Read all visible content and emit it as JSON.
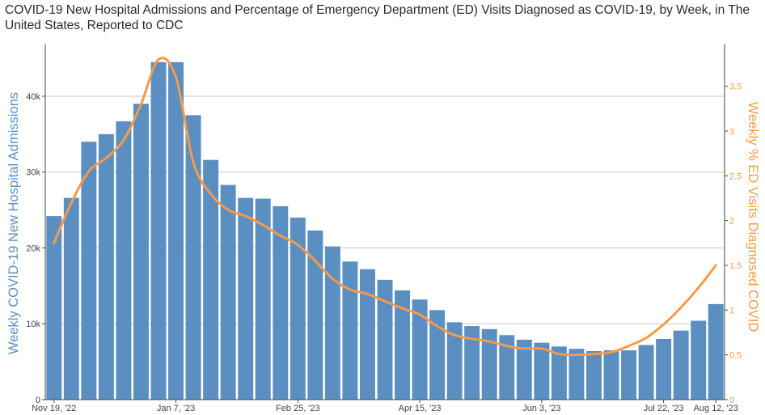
{
  "title": "COVID-19 New Hospital Admissions and Percentage of Emergency Department (ED) Visits Diagnosed as COVID-19, by Week, in The United States, Reported to CDC",
  "colors": {
    "bar": "#5b8fc2",
    "line": "#f39b4b",
    "left_axis_label": "#5b8fc2",
    "right_axis_label": "#f39b4b",
    "grid": "#c8c8c8"
  },
  "chart_data": {
    "type": "bar",
    "x_tick_labels": [
      "Nov 19, '22",
      "Jan 7, '23",
      "Feb 25, '23",
      "Apr 15, '23",
      "Jun 3, '23",
      "Jul 22, '23",
      "Aug 12, '23"
    ],
    "x_tick_indices": [
      0,
      7,
      14,
      21,
      28,
      35,
      38
    ],
    "ylabel": "Weekly COVID-19 New Hospital Admissions",
    "y2label": "Weekly % ED Visits Diagnosed COVID",
    "ylim": [
      0,
      46500
    ],
    "y2lim": [
      0,
      3.94
    ],
    "y_ticks": [
      0,
      10000,
      20000,
      30000,
      40000
    ],
    "y_tick_labels": [
      "0",
      "10k",
      "20k",
      "30k",
      "40k"
    ],
    "y2_ticks": [
      0,
      0.5,
      1,
      1.5,
      2,
      2.5,
      3,
      3.5
    ],
    "y2_tick_labels": [
      "0",
      "0.5",
      "1",
      "1.5",
      "2",
      "2.5",
      "3",
      "3.5"
    ],
    "grid": true,
    "series": [
      {
        "type": "bar",
        "axis": "left",
        "values": [
          24200,
          26600,
          34000,
          35000,
          36700,
          39000,
          44500,
          44500,
          37500,
          31600,
          28300,
          26600,
          26500,
          25500,
          24000,
          22300,
          20200,
          18200,
          17200,
          15800,
          14400,
          13200,
          11800,
          10200,
          9700,
          9300,
          8500,
          7900,
          7500,
          7000,
          6700,
          6400,
          6500,
          6500,
          7200,
          8000,
          9100,
          10400,
          12600
        ]
      },
      {
        "type": "line",
        "axis": "right",
        "values": [
          1.75,
          2.2,
          2.55,
          2.7,
          2.9,
          3.3,
          3.8,
          3.6,
          2.65,
          2.3,
          2.12,
          2.05,
          1.95,
          1.83,
          1.73,
          1.55,
          1.35,
          1.23,
          1.18,
          1.1,
          1.02,
          0.95,
          0.82,
          0.72,
          0.68,
          0.65,
          0.6,
          0.57,
          0.57,
          0.51,
          0.5,
          0.51,
          0.53,
          0.6,
          0.69,
          0.84,
          1.03,
          1.25,
          1.5
        ]
      }
    ]
  }
}
